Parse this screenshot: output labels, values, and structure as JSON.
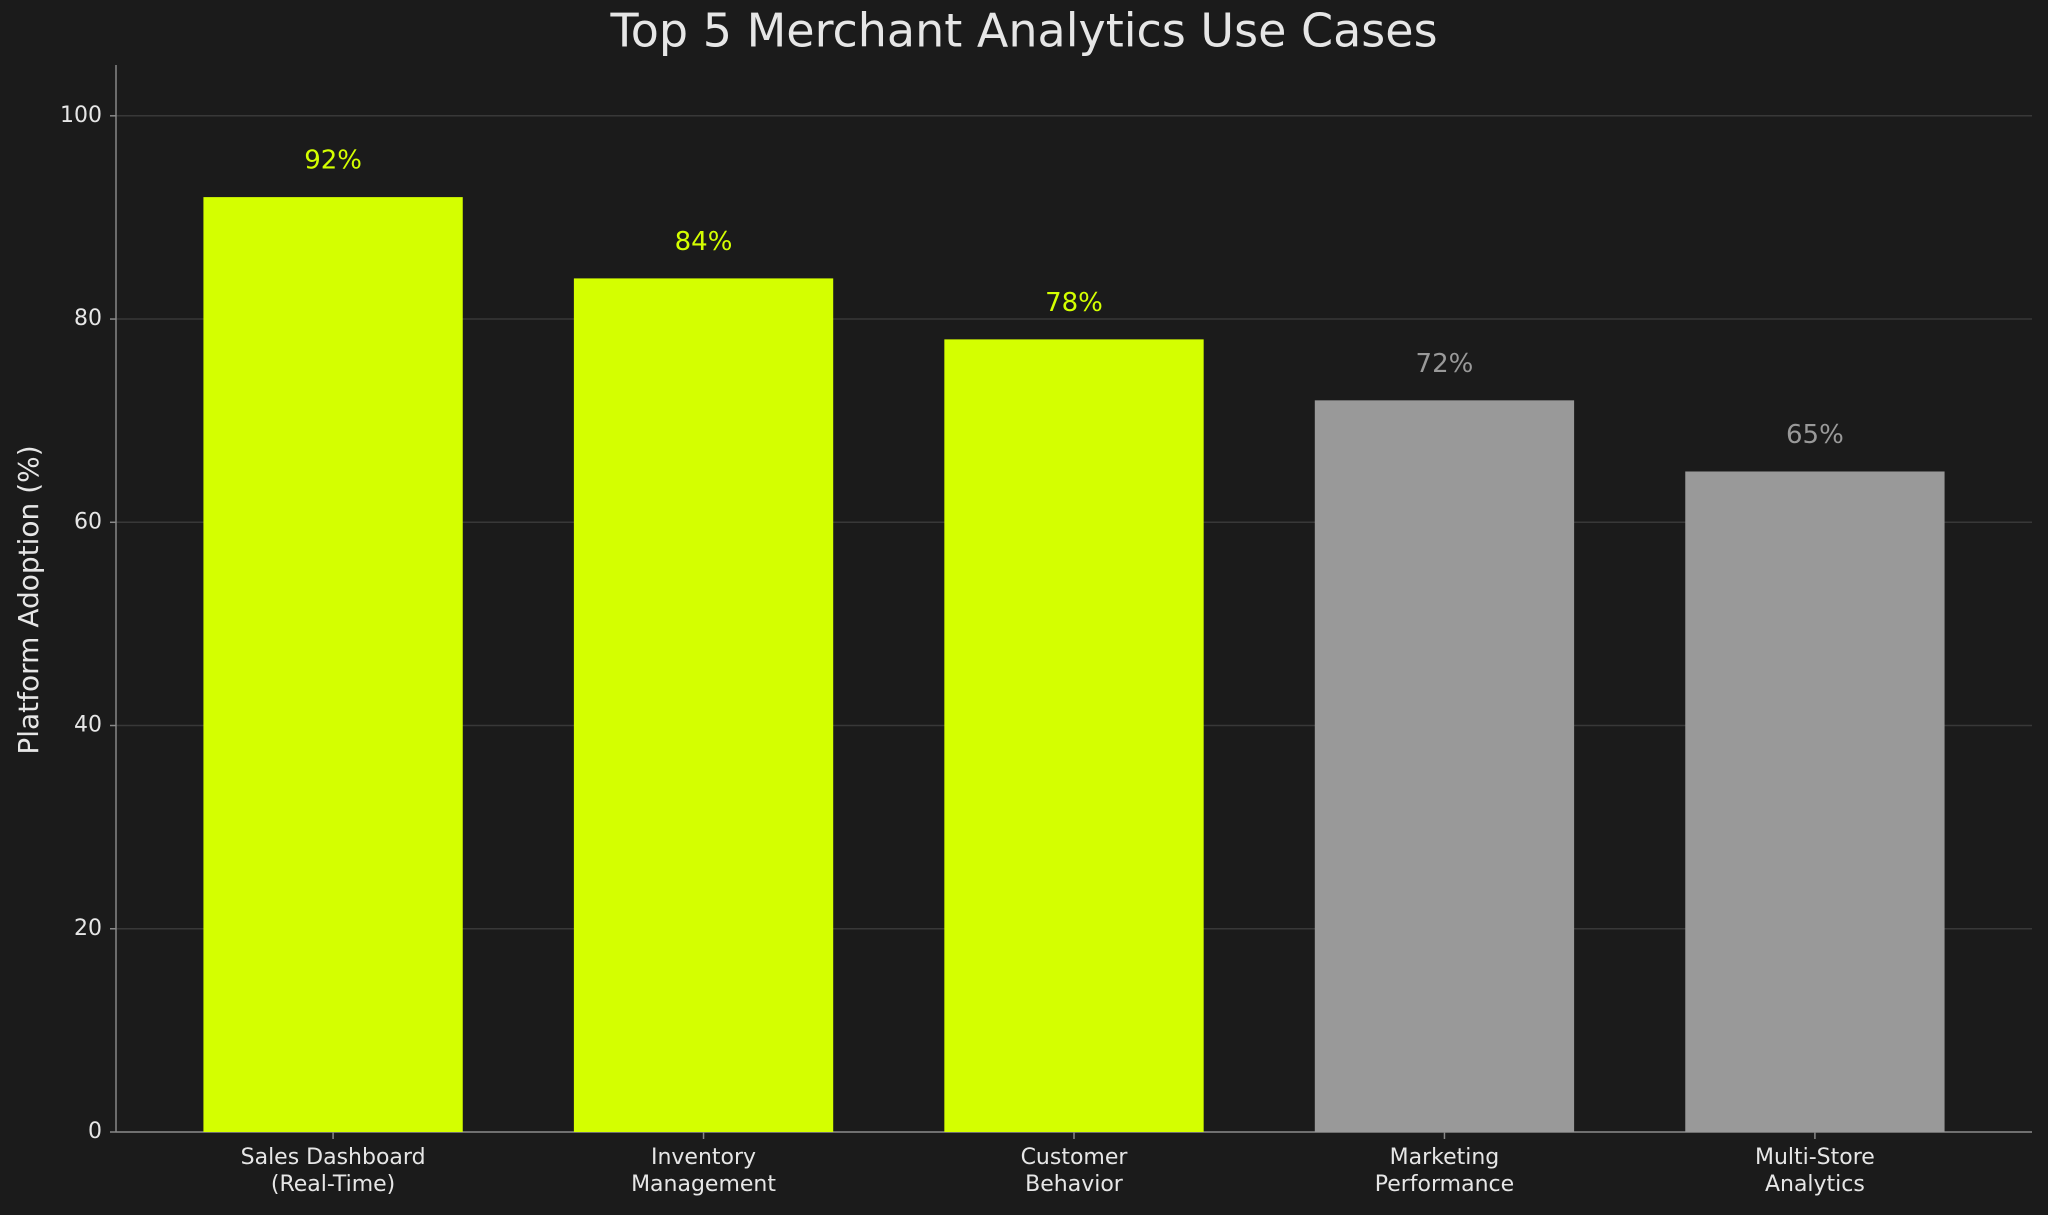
{
  "chart_data": {
    "type": "bar",
    "title": "Top 5 Merchant Analytics Use Cases",
    "y_label": "Platform Adoption (%)",
    "categories": [
      "Sales Dashboard\n(Real-Time)",
      "Inventory\nManagement",
      "Customer\nBehavior",
      "Marketing\nPerformance",
      "Multi-Store\nAnalytics"
    ],
    "values": [
      92,
      84,
      78,
      72,
      65
    ],
    "value_labels": [
      "92%",
      "84%",
      "78%",
      "72%",
      "65%"
    ],
    "colors": [
      "#d4ff00",
      "#d4ff00",
      "#d4ff00",
      "#999999",
      "#999999"
    ],
    "ylim": [
      0,
      105
    ],
    "yticks": [
      0,
      20,
      40,
      60,
      80,
      100
    ],
    "grid": true
  }
}
